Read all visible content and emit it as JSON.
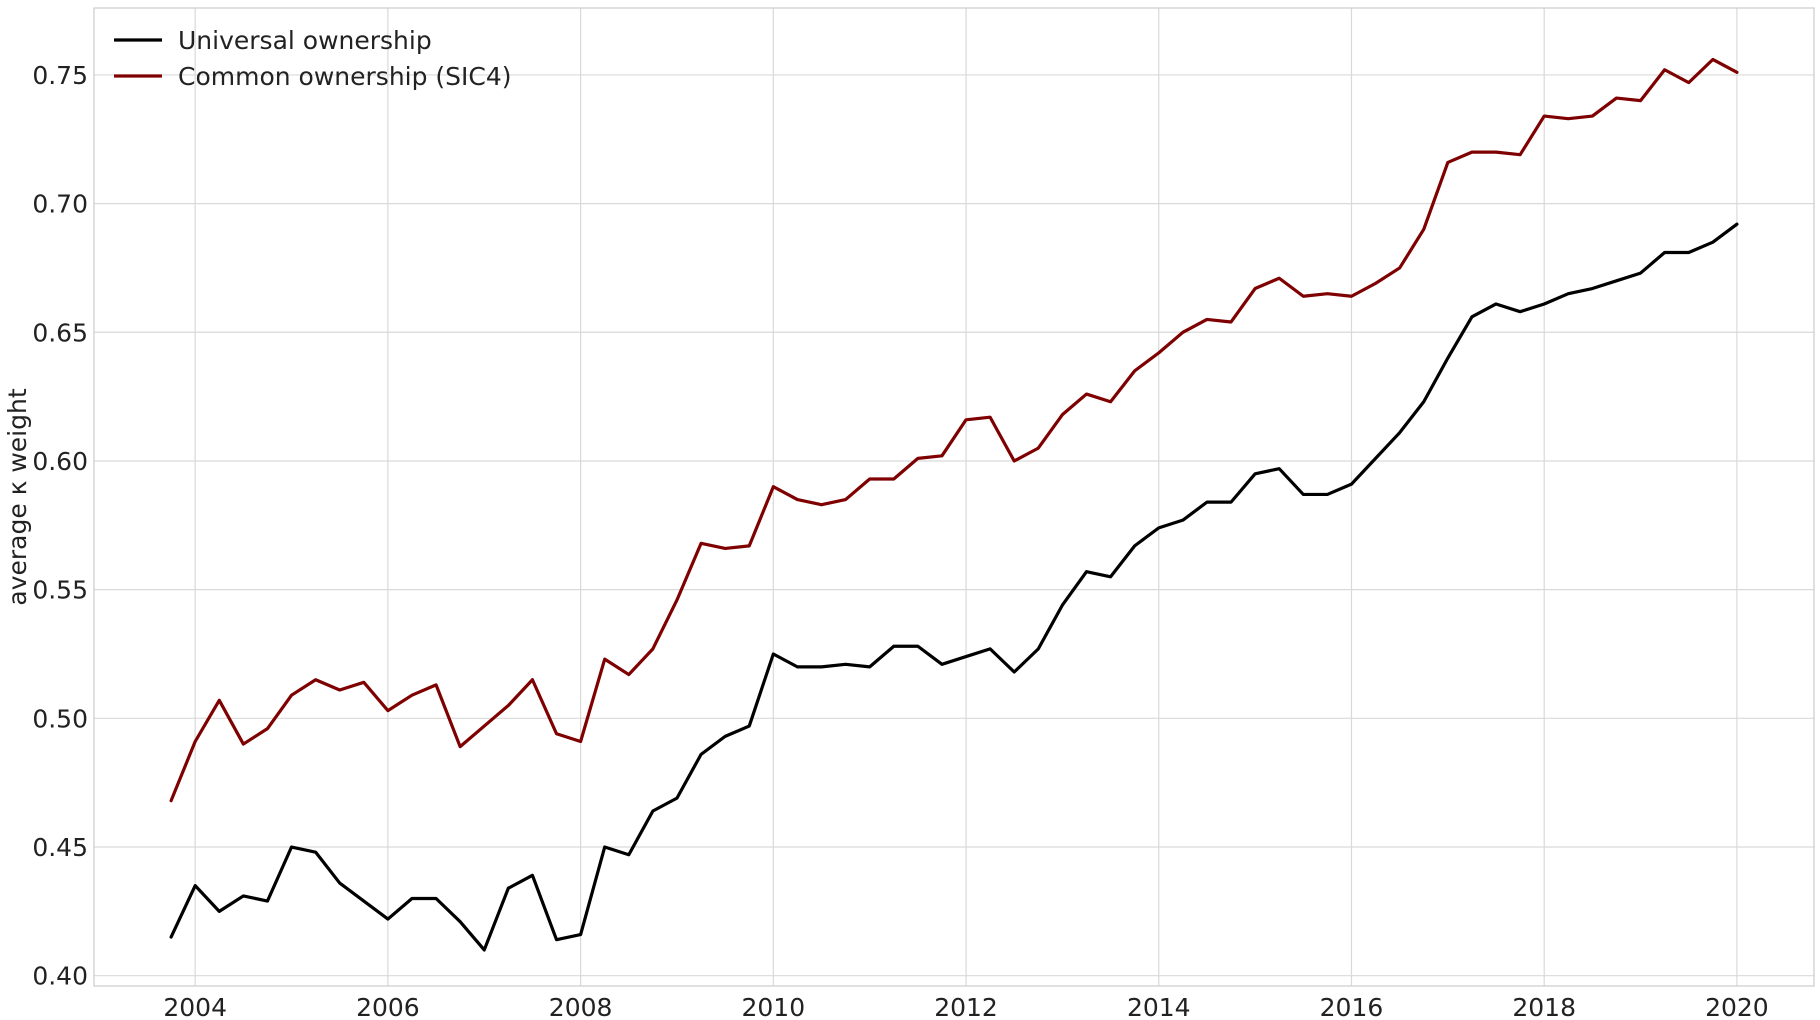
{
  "chart_data": {
    "type": "line",
    "title": "",
    "xlabel": "",
    "ylabel": "average κ weight",
    "xlim": [
      2002.95,
      2020.8
    ],
    "ylim": [
      0.396,
      0.776
    ],
    "xticks": [
      2004,
      2006,
      2008,
      2010,
      2012,
      2014,
      2016,
      2018,
      2020
    ],
    "xtick_labels": [
      "2004",
      "2006",
      "2008",
      "2010",
      "2012",
      "2014",
      "2016",
      "2018",
      "2020"
    ],
    "yticks": [
      0.4,
      0.45,
      0.5,
      0.55,
      0.6,
      0.65,
      0.7,
      0.75
    ],
    "ytick_labels": [
      "0.40",
      "0.45",
      "0.50",
      "0.55",
      "0.60",
      "0.65",
      "0.70",
      "0.75"
    ],
    "grid": true,
    "legend_position": "top-left",
    "x": [
      2003.75,
      2004.0,
      2004.25,
      2004.5,
      2004.75,
      2005.0,
      2005.25,
      2005.5,
      2005.75,
      2006.0,
      2006.25,
      2006.5,
      2006.75,
      2007.0,
      2007.25,
      2007.5,
      2007.75,
      2008.0,
      2008.25,
      2008.5,
      2008.75,
      2009.0,
      2009.25,
      2009.5,
      2009.75,
      2010.0,
      2010.25,
      2010.5,
      2010.75,
      2011.0,
      2011.25,
      2011.5,
      2011.75,
      2012.0,
      2012.25,
      2012.5,
      2012.75,
      2013.0,
      2013.25,
      2013.5,
      2013.75,
      2014.0,
      2014.25,
      2014.5,
      2014.75,
      2015.0,
      2015.25,
      2015.5,
      2015.75,
      2016.0,
      2016.25,
      2016.5,
      2016.75,
      2017.0,
      2017.25,
      2017.5,
      2017.75,
      2018.0,
      2018.25,
      2018.5,
      2018.75,
      2019.0,
      2019.25,
      2019.5,
      2019.75,
      2020.0
    ],
    "series": [
      {
        "name": "Universal ownership",
        "color": "#000000",
        "values": [
          0.415,
          0.435,
          0.425,
          0.431,
          0.429,
          0.45,
          0.448,
          0.436,
          0.429,
          0.422,
          0.43,
          0.43,
          0.421,
          0.41,
          0.434,
          0.439,
          0.414,
          0.416,
          0.45,
          0.447,
          0.464,
          0.469,
          0.486,
          0.493,
          0.497,
          0.525,
          0.52,
          0.52,
          0.521,
          0.52,
          0.528,
          0.528,
          0.521,
          0.524,
          0.527,
          0.518,
          0.527,
          0.544,
          0.557,
          0.555,
          0.567,
          0.574,
          0.577,
          0.584,
          0.584,
          0.595,
          0.597,
          0.587,
          0.587,
          0.591,
          0.601,
          0.611,
          0.623,
          0.64,
          0.656,
          0.661,
          0.658,
          0.661,
          0.665,
          0.667,
          0.67,
          0.673,
          0.681,
          0.681,
          0.685,
          0.692
        ]
      },
      {
        "name": "Common ownership (SIC4)",
        "color": "#7f0000",
        "values": [
          0.468,
          0.491,
          0.507,
          0.49,
          0.496,
          0.509,
          0.515,
          0.511,
          0.514,
          0.503,
          0.509,
          0.513,
          0.489,
          0.497,
          0.505,
          0.515,
          0.494,
          0.491,
          0.523,
          0.517,
          0.527,
          0.546,
          0.568,
          0.566,
          0.567,
          0.59,
          0.585,
          0.583,
          0.585,
          0.593,
          0.593,
          0.601,
          0.602,
          0.616,
          0.617,
          0.6,
          0.605,
          0.618,
          0.626,
          0.623,
          0.635,
          0.642,
          0.65,
          0.655,
          0.654,
          0.667,
          0.671,
          0.664,
          0.665,
          0.664,
          0.669,
          0.675,
          0.69,
          0.716,
          0.72,
          0.72,
          0.719,
          0.734,
          0.733,
          0.734,
          0.741,
          0.74,
          0.752,
          0.747,
          0.756,
          0.751
        ]
      }
    ]
  }
}
